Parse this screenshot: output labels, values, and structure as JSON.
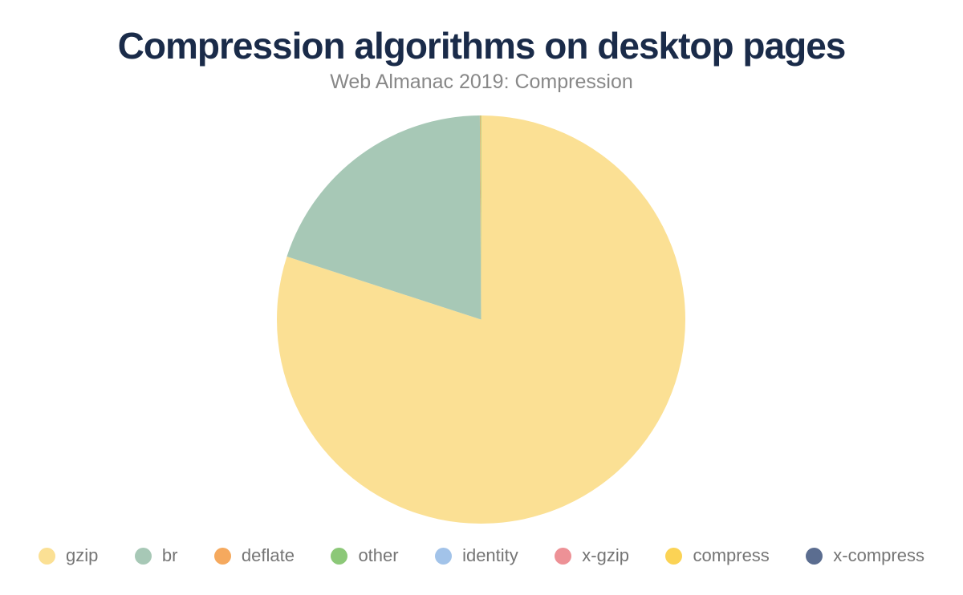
{
  "chart_data": {
    "type": "pie",
    "title": "Compression algorithms on desktop pages",
    "subtitle": "Web Almanac 2019: Compression",
    "unit": "percent",
    "legend_position": "bottom",
    "start_angle_deg": 0,
    "background_color": "#ffffff",
    "title_color": "#1a2b49",
    "subtitle_color": "#888888",
    "legend_text_color": "#757575",
    "slices": [
      {
        "label": "gzip",
        "value": 80.0,
        "color": "#fbe094"
      },
      {
        "label": "br",
        "value": 19.9,
        "color": "#a7c8b6"
      },
      {
        "label": "deflate",
        "value": 0.05,
        "color": "#f5a95e"
      },
      {
        "label": "other",
        "value": 0.05,
        "color": "#8cc878"
      },
      {
        "label": "identity",
        "value": 0,
        "color": "#a2c3e9"
      },
      {
        "label": "x-gzip",
        "value": 0,
        "color": "#ed9196"
      },
      {
        "label": "compress",
        "value": 0,
        "color": "#fbd355"
      },
      {
        "label": "x-compress",
        "value": 0,
        "color": "#5b6d90"
      }
    ]
  }
}
